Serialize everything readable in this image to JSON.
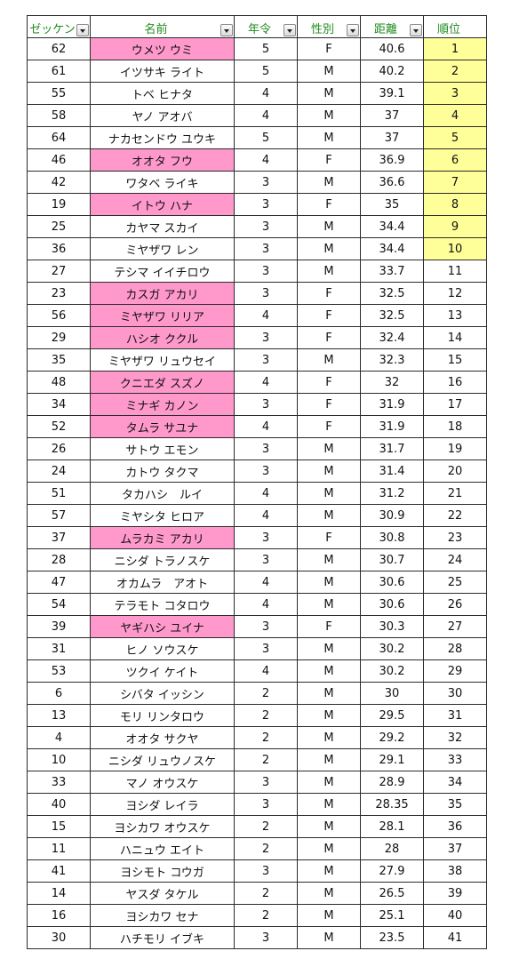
{
  "headers": [
    "ゼッケン",
    "名前",
    "年令",
    "性別",
    "距離",
    "順位"
  ],
  "colors": {
    "header_text": "#1e8a1e",
    "name_highlight": "#ff99cc",
    "rank_highlight": "#ffff99"
  },
  "rows": [
    {
      "no": "62",
      "name": "ウメツ ウミ",
      "age": "5",
      "sex": "F",
      "dist": "40.6",
      "rank": "1"
    },
    {
      "no": "61",
      "name": "イツサキ ライト",
      "age": "5",
      "sex": "M",
      "dist": "40.2",
      "rank": "2"
    },
    {
      "no": "55",
      "name": "トベ ヒナタ",
      "age": "4",
      "sex": "M",
      "dist": "39.1",
      "rank": "3"
    },
    {
      "no": "58",
      "name": "ヤノ アオバ",
      "age": "4",
      "sex": "M",
      "dist": "37",
      "rank": "4"
    },
    {
      "no": "64",
      "name": "ナカセンドウ ユウキ",
      "age": "5",
      "sex": "M",
      "dist": "37",
      "rank": "5"
    },
    {
      "no": "46",
      "name": "オオタ フウ",
      "age": "4",
      "sex": "F",
      "dist": "36.9",
      "rank": "6"
    },
    {
      "no": "42",
      "name": "ワタベ ライキ",
      "age": "3",
      "sex": "M",
      "dist": "36.6",
      "rank": "7"
    },
    {
      "no": "19",
      "name": "イトウ ハナ",
      "age": "3",
      "sex": "F",
      "dist": "35",
      "rank": "8"
    },
    {
      "no": "25",
      "name": "カヤマ スカイ",
      "age": "3",
      "sex": "M",
      "dist": "34.4",
      "rank": "9"
    },
    {
      "no": "36",
      "name": "ミヤザワ レン",
      "age": "3",
      "sex": "M",
      "dist": "34.4",
      "rank": "10"
    },
    {
      "no": "27",
      "name": "テシマ イイチロウ",
      "age": "3",
      "sex": "M",
      "dist": "33.7",
      "rank": "11"
    },
    {
      "no": "23",
      "name": "カスガ アカリ",
      "age": "3",
      "sex": "F",
      "dist": "32.5",
      "rank": "12"
    },
    {
      "no": "56",
      "name": "ミヤザワ リリア",
      "age": "4",
      "sex": "F",
      "dist": "32.5",
      "rank": "13"
    },
    {
      "no": "29",
      "name": "ハシオ ククル",
      "age": "3",
      "sex": "F",
      "dist": "32.4",
      "rank": "14"
    },
    {
      "no": "35",
      "name": "ミヤザワ リュウセイ",
      "age": "3",
      "sex": "M",
      "dist": "32.3",
      "rank": "15"
    },
    {
      "no": "48",
      "name": "クニエダ スズノ",
      "age": "4",
      "sex": "F",
      "dist": "32",
      "rank": "16"
    },
    {
      "no": "34",
      "name": "ミナギ カノン",
      "age": "3",
      "sex": "F",
      "dist": "31.9",
      "rank": "17"
    },
    {
      "no": "52",
      "name": "タムラ サユナ",
      "age": "4",
      "sex": "F",
      "dist": "31.9",
      "rank": "18"
    },
    {
      "no": "26",
      "name": "サトウ エモン",
      "age": "3",
      "sex": "M",
      "dist": "31.7",
      "rank": "19"
    },
    {
      "no": "24",
      "name": "カトウ タクマ",
      "age": "3",
      "sex": "M",
      "dist": "31.4",
      "rank": "20"
    },
    {
      "no": "51",
      "name": "タカハシ　ルイ",
      "age": "4",
      "sex": "M",
      "dist": "31.2",
      "rank": "21"
    },
    {
      "no": "57",
      "name": "ミヤシタ ヒロア",
      "age": "4",
      "sex": "M",
      "dist": "30.9",
      "rank": "22"
    },
    {
      "no": "37",
      "name": "ムラカミ アカリ",
      "age": "3",
      "sex": "F",
      "dist": "30.8",
      "rank": "23"
    },
    {
      "no": "28",
      "name": "ニシダ トラノスケ",
      "age": "3",
      "sex": "M",
      "dist": "30.7",
      "rank": "24"
    },
    {
      "no": "47",
      "name": "オカムラ　アオト",
      "age": "4",
      "sex": "M",
      "dist": "30.6",
      "rank": "25"
    },
    {
      "no": "54",
      "name": "テラモト コタロウ",
      "age": "4",
      "sex": "M",
      "dist": "30.6",
      "rank": "26"
    },
    {
      "no": "39",
      "name": "ヤギハシ ユイナ",
      "age": "3",
      "sex": "F",
      "dist": "30.3",
      "rank": "27"
    },
    {
      "no": "31",
      "name": "ヒノ ソウスケ",
      "age": "3",
      "sex": "M",
      "dist": "30.2",
      "rank": "28"
    },
    {
      "no": "53",
      "name": "ツクイ ケイト",
      "age": "4",
      "sex": "M",
      "dist": "30.2",
      "rank": "29"
    },
    {
      "no": "6",
      "name": "シバタ イッシン",
      "age": "2",
      "sex": "M",
      "dist": "30",
      "rank": "30"
    },
    {
      "no": "13",
      "name": "モリ リンタロウ",
      "age": "2",
      "sex": "M",
      "dist": "29.5",
      "rank": "31"
    },
    {
      "no": "4",
      "name": "オオタ サクヤ",
      "age": "2",
      "sex": "M",
      "dist": "29.2",
      "rank": "32"
    },
    {
      "no": "10",
      "name": "ニシダ リュウノスケ",
      "age": "2",
      "sex": "M",
      "dist": "29.1",
      "rank": "33"
    },
    {
      "no": "33",
      "name": "マノ オウスケ",
      "age": "3",
      "sex": "M",
      "dist": "28.9",
      "rank": "34"
    },
    {
      "no": "40",
      "name": "ヨシダ レイラ",
      "age": "3",
      "sex": "M",
      "dist": "28.35",
      "rank": "35"
    },
    {
      "no": "15",
      "name": "ヨシカワ オウスケ",
      "age": "2",
      "sex": "M",
      "dist": "28.1",
      "rank": "36"
    },
    {
      "no": "11",
      "name": "ハニュウ エイト",
      "age": "2",
      "sex": "M",
      "dist": "28",
      "rank": "37"
    },
    {
      "no": "41",
      "name": "ヨシモト コウガ",
      "age": "3",
      "sex": "M",
      "dist": "27.9",
      "rank": "38"
    },
    {
      "no": "14",
      "name": "ヤスダ タケル",
      "age": "2",
      "sex": "M",
      "dist": "26.5",
      "rank": "39"
    },
    {
      "no": "16",
      "name": "ヨシカワ セナ",
      "age": "2",
      "sex": "M",
      "dist": "25.1",
      "rank": "40"
    },
    {
      "no": "30",
      "name": "ハチモリ イブキ",
      "age": "3",
      "sex": "M",
      "dist": "23.5",
      "rank": "41"
    }
  ]
}
